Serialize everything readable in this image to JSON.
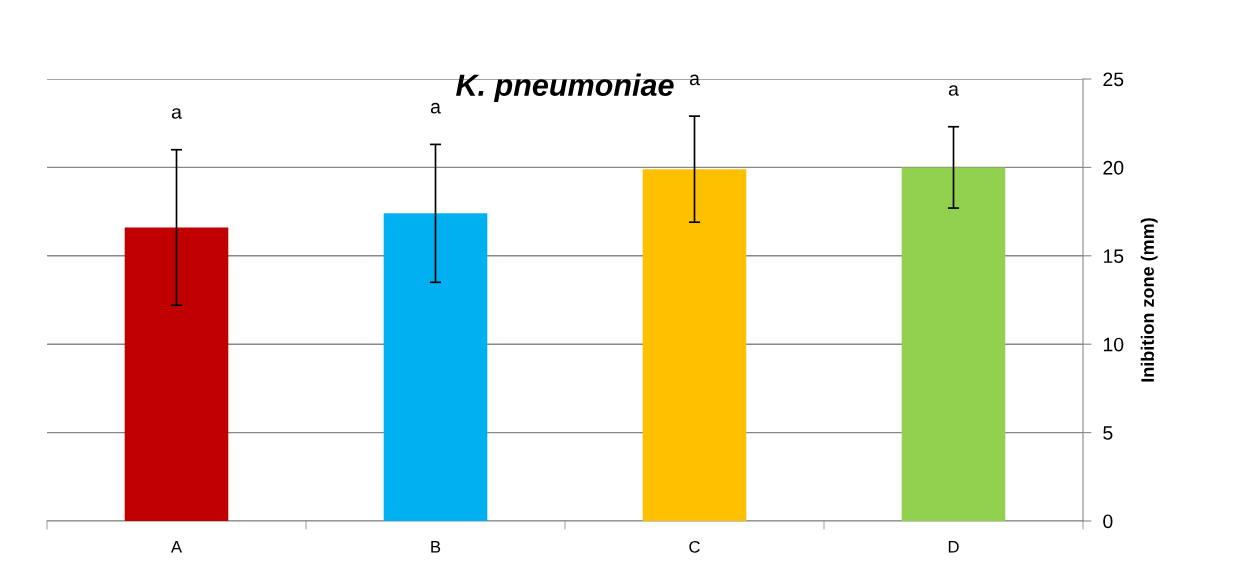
{
  "chart_data": {
    "type": "bar",
    "title": "K. pneumoniae",
    "ylabel": "Inibition zone (mm)",
    "categories": [
      "A",
      "B",
      "C",
      "D"
    ],
    "values": [
      16.6,
      17.4,
      19.9,
      20.0
    ],
    "colors": [
      "#c00000",
      "#00b0f0",
      "#ffc000",
      "#92d050"
    ],
    "errors": [
      4.4,
      3.9,
      3.0,
      2.3
    ],
    "ylim": [
      0,
      25
    ],
    "yticks": [
      0,
      5,
      10,
      15,
      20,
      25
    ],
    "grid": "y",
    "annotations": [
      "a",
      "a",
      "a",
      "a"
    ]
  }
}
